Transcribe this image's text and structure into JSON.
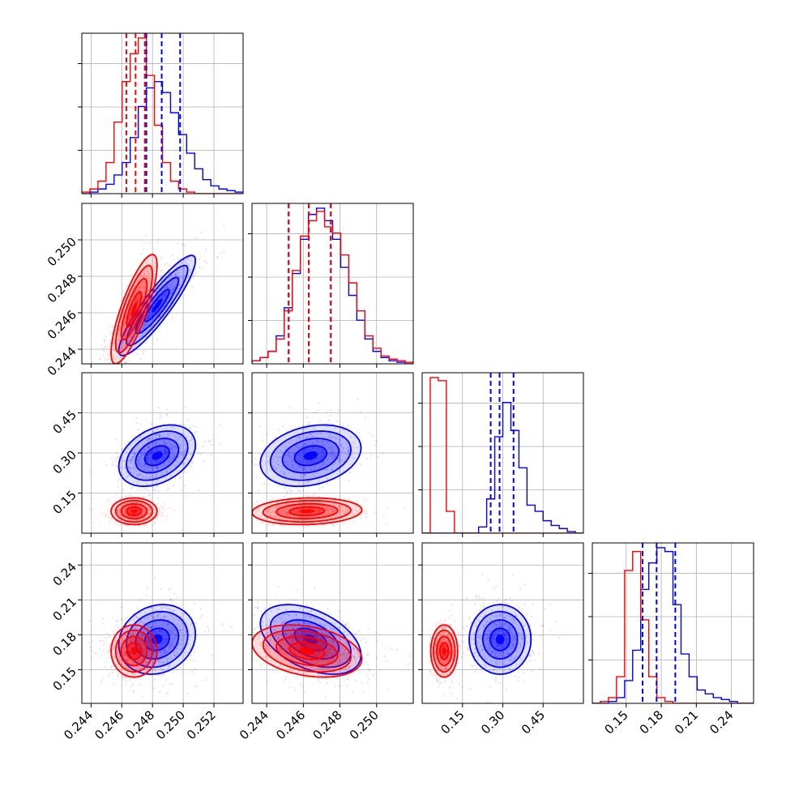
{
  "chart_data": {
    "type": "corner",
    "grid": true,
    "series": [
      {
        "color": "#0000ff",
        "x1": {
          "hist_start": 0.2434,
          "hist_step": 0.000525,
          "counts": [
            0,
            1,
            3,
            6,
            12,
            20,
            36,
            56,
            68,
            72,
            65,
            52,
            38,
            26,
            16,
            9,
            5,
            3,
            2,
            1
          ],
          "quantiles": [
            0.2476,
            0.2486,
            0.2498
          ]
        },
        "x2": {
          "hist_start": 0.2432,
          "hist_step": 0.00044,
          "counts": [
            2,
            4,
            8,
            18,
            36,
            58,
            80,
            96,
            100,
            92,
            80,
            62,
            44,
            28,
            16,
            8,
            4,
            2,
            1,
            0
          ],
          "quantiles": [
            0.2452,
            0.2463,
            0.2475
          ]
        },
        "x3": {
          "hist_start": 0.0,
          "hist_step": 0.03,
          "counts": [
            0,
            0,
            0,
            0,
            0,
            0,
            0,
            4,
            22,
            62,
            84,
            66,
            42,
            18,
            14,
            8,
            5,
            3,
            1,
            0
          ],
          "quantiles": [
            0.255,
            0.288,
            0.34
          ]
        },
        "x4": {
          "hist_start": 0.121,
          "hist_step": 0.0069,
          "counts": [
            0,
            0,
            1,
            3,
            12,
            28,
            60,
            74,
            82,
            80,
            52,
            26,
            14,
            7,
            5,
            3,
            2,
            1,
            0,
            0
          ],
          "quantiles": [
            0.164,
            0.176,
            0.192
          ]
        },
        "centers": {
          "x1": 0.2483,
          "x2": 0.2464,
          "x3": 0.29,
          "x4": 0.176
        },
        "sigmas": {
          "x1": 0.001,
          "x2": 0.0011,
          "x3": 0.046,
          "x4": 0.012
        },
        "correlations": {
          "x1_x2": 0.9,
          "x1_x3": 0.35,
          "x1_x4": 0.15,
          "x2_x3": 0.25,
          "x2_x4": -0.45,
          "x3_x4": 0.0
        }
      },
      {
        "color": "#ff0000",
        "x1": {
          "hist_start": 0.2434,
          "hist_step": 0.000525,
          "counts": [
            1,
            3,
            8,
            20,
            46,
            72,
            90,
            100,
            76,
            44,
            20,
            8,
            3,
            1,
            0,
            0,
            0,
            0,
            0,
            0
          ],
          "quantiles": [
            0.2463,
            0.2469,
            0.2475
          ]
        },
        "x2": {
          "hist_start": 0.2432,
          "hist_step": 0.00044,
          "counts": [
            2,
            4,
            8,
            16,
            34,
            60,
            82,
            92,
            98,
            88,
            84,
            70,
            52,
            34,
            18,
            10,
            5,
            3,
            2,
            1
          ],
          "quantiles": [
            0.2452,
            0.2463,
            0.2475
          ]
        },
        "x3": {
          "hist_start": 0.0,
          "hist_step": 0.03,
          "counts": [
            0,
            100,
            98,
            14,
            0,
            0,
            0,
            0,
            0,
            0,
            0,
            0,
            0,
            0,
            0,
            0,
            0,
            0,
            0,
            0
          ],
          "quantiles": []
        },
        "x4": {
          "hist_start": 0.121,
          "hist_step": 0.0069,
          "counts": [
            0,
            1,
            3,
            14,
            70,
            80,
            44,
            14,
            3,
            1,
            0,
            0,
            0,
            0,
            0,
            0,
            0,
            0,
            0,
            0
          ],
          "quantiles": []
        },
        "centers": {
          "x1": 0.2468,
          "x2": 0.2462,
          "x3": 0.082,
          "x4": 0.166
        },
        "sigmas": {
          "x1": 0.0006,
          "x2": 0.0012,
          "x3": 0.02,
          "x4": 0.009
        },
        "correlations": {
          "x1_x2": 0.8,
          "x1_x3": 0.0,
          "x1_x4": 0.0,
          "x2_x3": 0.1,
          "x2_x4": -0.3,
          "x3_x4": 0.0
        }
      }
    ],
    "axes": {
      "x1": {
        "range": [
          0.2434,
          0.2539
        ],
        "ticks": [
          0.244,
          0.246,
          0.248,
          0.25,
          0.252
        ],
        "tick_labels": [
          "0.244",
          "0.246",
          "0.248",
          "0.250",
          "0.252"
        ]
      },
      "x2": {
        "range": [
          0.2432,
          0.252
        ],
        "ticks": [
          0.244,
          0.246,
          0.248,
          0.25
        ],
        "tick_labels": [
          "0.244",
          "0.246",
          "0.248",
          "0.250"
        ]
      },
      "x3": {
        "range": [
          0.0,
          0.6
        ],
        "ticks": [
          0.15,
          0.3,
          0.45
        ],
        "tick_labels": [
          "0.15",
          "0.30",
          "0.45"
        ]
      },
      "x4": {
        "range": [
          0.121,
          0.259
        ],
        "ticks": [
          0.15,
          0.18,
          0.21,
          0.24
        ],
        "tick_labels": [
          "0.15",
          "0.18",
          "0.21",
          "0.24"
        ]
      }
    }
  }
}
